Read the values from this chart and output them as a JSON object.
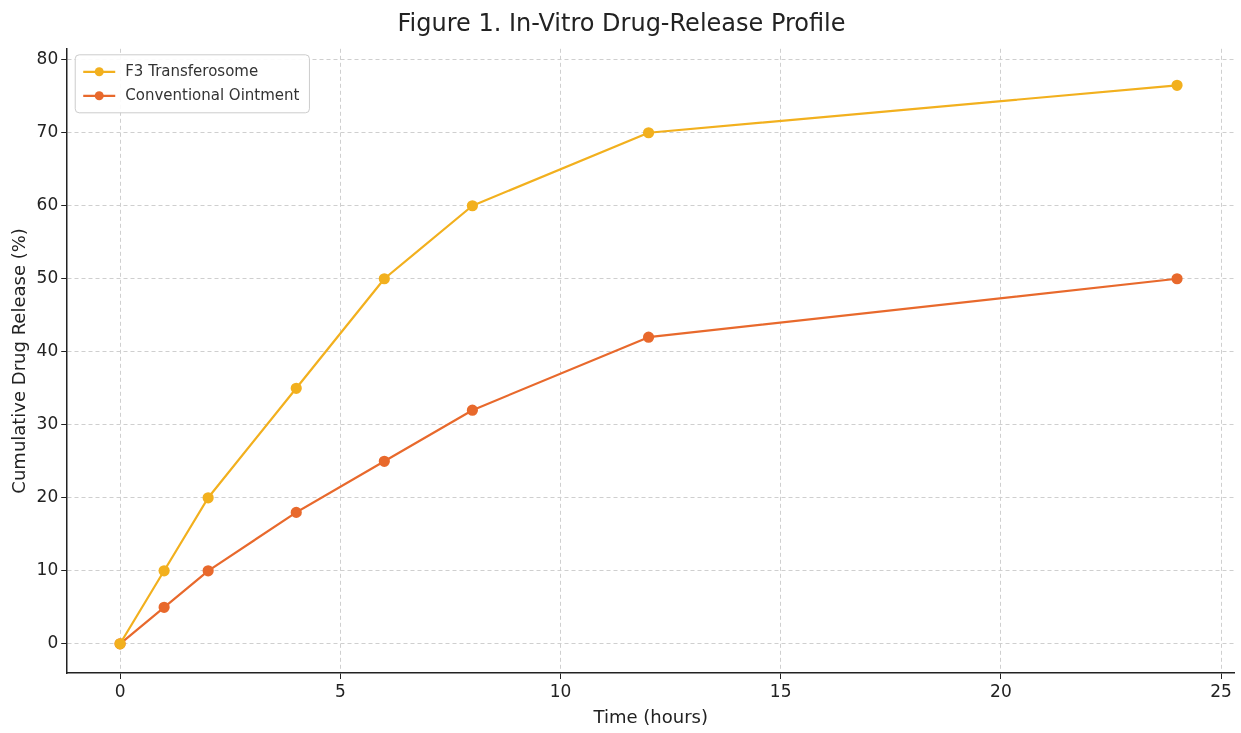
{
  "chart_data": {
    "type": "line",
    "title": "Figure 1. In-Vitro Drug-Release Profile",
    "xlabel": "Time (hours)",
    "ylabel": "Cumulative Drug Release (%)",
    "x": [
      0,
      1,
      2,
      4,
      6,
      8,
      12,
      24
    ],
    "series": [
      {
        "name": "F3 Transferosome",
        "color": "#f2b01e",
        "values": [
          0,
          10,
          20,
          35,
          50,
          60,
          70,
          76.5
        ]
      },
      {
        "name": "Conventional Ointment",
        "color": "#e8692c",
        "values": [
          0,
          5,
          10,
          18,
          25,
          32,
          42,
          50
        ]
      }
    ],
    "xlim": [
      -1.2,
      25.3
    ],
    "xticks": [
      0,
      5,
      10,
      15,
      20,
      25
    ],
    "ylim": [
      -4,
      81.5
    ],
    "yticks": [
      0,
      10,
      20,
      30,
      40,
      50,
      60,
      70,
      80
    ],
    "grid": true,
    "legend": "top left",
    "marker": "circle",
    "line_style": "solid"
  }
}
